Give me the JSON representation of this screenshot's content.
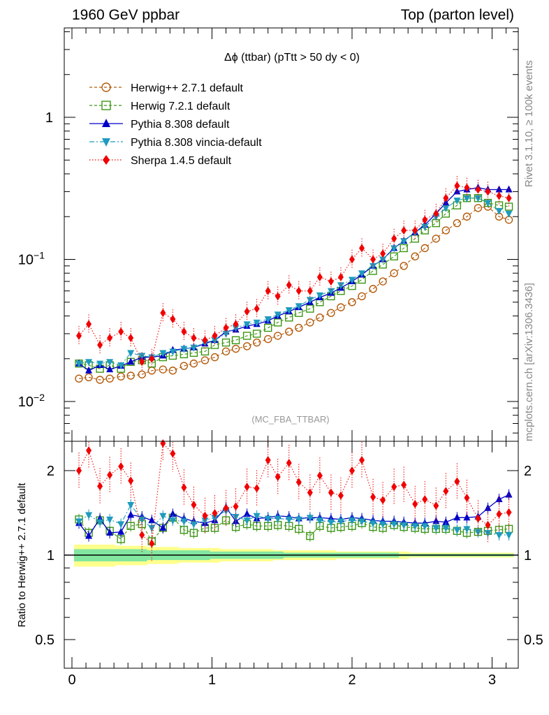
{
  "header": {
    "left": "1960 GeV ppbar",
    "right": "Top (parton level)"
  },
  "side": {
    "rivet": "Rivet 3.1.10, ≥ 100k events",
    "mcplots": "mcplots.cern.ch [arXiv:1306.3436]"
  },
  "plot_title": "Δϕ (ttbar) (pTtt > 50 dy < 0)",
  "analysis_label": "(MC_FBA_TTBAR)",
  "ratio_ylabel": "Ratio to Herwig++ 2.7.1 default",
  "colors": {
    "herwigpp": "#b45a0a",
    "herwig7": "#3c9614",
    "pythia": "#0000c8",
    "vincia": "#1e9bbe",
    "sherpa": "#f00000",
    "band_yellow": "#ffff8c",
    "band_green": "#82e6a0"
  },
  "chart_data": [
    {
      "type": "line",
      "title": "Δϕ (ttbar) (pTtt > 50 dy < 0)",
      "xlabel": "",
      "ylabel": "",
      "yscale": "log",
      "xlim": [
        -0.05,
        3.2
      ],
      "ylim": [
        0.0055,
        4.5
      ],
      "x_ticks": [
        "0",
        "1",
        "2",
        "3"
      ],
      "y_ticks": [
        "10^-2",
        "10^-1",
        "1"
      ],
      "legend_position": "top-left",
      "x": [
        0.05,
        0.12,
        0.2,
        0.27,
        0.35,
        0.42,
        0.5,
        0.57,
        0.65,
        0.72,
        0.8,
        0.87,
        0.95,
        1.02,
        1.1,
        1.17,
        1.25,
        1.32,
        1.4,
        1.47,
        1.55,
        1.62,
        1.7,
        1.77,
        1.85,
        1.92,
        2.0,
        2.07,
        2.15,
        2.22,
        2.3,
        2.37,
        2.45,
        2.52,
        2.6,
        2.67,
        2.75,
        2.82,
        2.9,
        2.97,
        3.05,
        3.12
      ],
      "series": [
        {
          "name": "Herwig++ 2.7.1 default",
          "color": "#b45a0a",
          "marker": "open-circle",
          "line": "dashed",
          "values": [
            0.0145,
            0.0148,
            0.0142,
            0.0145,
            0.015,
            0.0152,
            0.0155,
            0.0165,
            0.0168,
            0.0165,
            0.0178,
            0.0185,
            0.0195,
            0.0205,
            0.0225,
            0.0235,
            0.0245,
            0.026,
            0.0275,
            0.029,
            0.031,
            0.033,
            0.036,
            0.039,
            0.042,
            0.046,
            0.05,
            0.055,
            0.062,
            0.07,
            0.08,
            0.09,
            0.105,
            0.12,
            0.14,
            0.16,
            0.18,
            0.2,
            0.23,
            0.235,
            0.2,
            0.19
          ]
        },
        {
          "name": "Herwig 7.2.1 default",
          "color": "#3c9614",
          "marker": "open-square",
          "line": "dashed",
          "values": [
            0.0185,
            0.018,
            0.017,
            0.018,
            0.017,
            0.019,
            0.0195,
            0.0185,
            0.0205,
            0.021,
            0.0215,
            0.022,
            0.0225,
            0.025,
            0.026,
            0.027,
            0.029,
            0.03,
            0.033,
            0.036,
            0.039,
            0.042,
            0.045,
            0.05,
            0.055,
            0.06,
            0.065,
            0.072,
            0.083,
            0.092,
            0.105,
            0.12,
            0.14,
            0.16,
            0.18,
            0.21,
            0.24,
            0.27,
            0.27,
            0.25,
            0.24,
            0.235
          ]
        },
        {
          "name": "Pythia 8.308 default",
          "color": "#0000c8",
          "marker": "filled-triangle-up",
          "line": "solid",
          "values": [
            0.0185,
            0.0165,
            0.018,
            0.0168,
            0.0178,
            0.019,
            0.0205,
            0.0205,
            0.021,
            0.023,
            0.0235,
            0.024,
            0.0255,
            0.027,
            0.031,
            0.032,
            0.034,
            0.035,
            0.037,
            0.04,
            0.043,
            0.046,
            0.05,
            0.054,
            0.058,
            0.063,
            0.07,
            0.078,
            0.09,
            0.1,
            0.12,
            0.135,
            0.155,
            0.175,
            0.21,
            0.25,
            0.3,
            0.31,
            0.32,
            0.31,
            0.31,
            0.31
          ]
        },
        {
          "name": "Pythia 8.308 vincia-default",
          "color": "#1e9bbe",
          "marker": "filled-triangle-down",
          "line": "dashdot",
          "values": [
            0.0185,
            0.019,
            0.0185,
            0.019,
            0.018,
            0.022,
            0.021,
            0.0205,
            0.022,
            0.0225,
            0.0235,
            0.024,
            0.026,
            0.027,
            0.03,
            0.033,
            0.035,
            0.036,
            0.038,
            0.041,
            0.044,
            0.047,
            0.052,
            0.056,
            0.06,
            0.066,
            0.072,
            0.08,
            0.09,
            0.1,
            0.12,
            0.135,
            0.155,
            0.17,
            0.2,
            0.23,
            0.26,
            0.27,
            0.27,
            0.25,
            0.22,
            0.21
          ]
        },
        {
          "name": "Sherpa 1.4.5 default",
          "color": "#f00000",
          "marker": "filled-diamond",
          "line": "dotted",
          "values": [
            0.029,
            0.035,
            0.025,
            0.028,
            0.031,
            0.028,
            0.019,
            0.02,
            0.042,
            0.038,
            0.031,
            0.028,
            0.027,
            0.029,
            0.033,
            0.035,
            0.043,
            0.045,
            0.06,
            0.055,
            0.066,
            0.06,
            0.06,
            0.075,
            0.07,
            0.075,
            0.1,
            0.12,
            0.1,
            0.11,
            0.14,
            0.16,
            0.16,
            0.19,
            0.21,
            0.27,
            0.33,
            0.32,
            0.31,
            0.3,
            0.28,
            0.27
          ]
        }
      ]
    },
    {
      "type": "line",
      "title": "",
      "xlabel": "",
      "ylabel": "Ratio to Herwig++ 2.7.1 default",
      "yscale": "log",
      "xlim": [
        -0.05,
        3.2
      ],
      "ylim": [
        0.41,
        2.5
      ],
      "x_ticks": [
        "0",
        "1",
        "2",
        "3"
      ],
      "y_ticks": [
        "0.5",
        "1",
        "2"
      ],
      "band": {
        "yellow_half_width": [
          0.09,
          0.09,
          0.09,
          0.09,
          0.08,
          0.08,
          0.08,
          0.07,
          0.07,
          0.07,
          0.06,
          0.06,
          0.06,
          0.06,
          0.05,
          0.05,
          0.05,
          0.05,
          0.05,
          0.04,
          0.04,
          0.04,
          0.04,
          0.04,
          0.04,
          0.03,
          0.03,
          0.03,
          0.03,
          0.03,
          0.03,
          0.03,
          0.02,
          0.02,
          0.02,
          0.02,
          0.02,
          0.02,
          0.02,
          0.02,
          0.02,
          0.02
        ],
        "green_half_width": [
          0.05,
          0.05,
          0.05,
          0.05,
          0.05,
          0.05,
          0.05,
          0.04,
          0.04,
          0.04,
          0.04,
          0.04,
          0.04,
          0.03,
          0.03,
          0.03,
          0.03,
          0.03,
          0.03,
          0.03,
          0.02,
          0.02,
          0.02,
          0.02,
          0.02,
          0.02,
          0.02,
          0.02,
          0.02,
          0.02,
          0.02,
          0.01,
          0.01,
          0.01,
          0.01,
          0.01,
          0.01,
          0.01,
          0.01,
          0.01,
          0.01,
          0.01
        ]
      },
      "x": [
        0.05,
        0.12,
        0.2,
        0.27,
        0.35,
        0.42,
        0.5,
        0.57,
        0.65,
        0.72,
        0.8,
        0.87,
        0.95,
        1.02,
        1.1,
        1.17,
        1.25,
        1.32,
        1.4,
        1.47,
        1.55,
        1.62,
        1.7,
        1.77,
        1.85,
        1.92,
        2.0,
        2.07,
        2.15,
        2.22,
        2.3,
        2.37,
        2.45,
        2.52,
        2.6,
        2.67,
        2.75,
        2.82,
        2.9,
        2.97,
        3.05,
        3.12
      ],
      "series": [
        {
          "name": "Herwig 7.2.1 default",
          "color": "#3c9614",
          "marker": "open-square",
          "values": [
            1.34,
            1.2,
            1.33,
            1.22,
            1.14,
            1.27,
            1.29,
            1.12,
            1.25,
            1.36,
            1.23,
            1.2,
            1.25,
            1.25,
            1.33,
            1.26,
            1.29,
            1.27,
            1.27,
            1.28,
            1.27,
            1.24,
            1.17,
            1.27,
            1.25,
            1.26,
            1.27,
            1.3,
            1.26,
            1.25,
            1.28,
            1.26,
            1.25,
            1.24,
            1.24,
            1.24,
            1.22,
            1.2,
            1.21,
            1.22,
            1.23,
            1.24
          ]
        },
        {
          "name": "Pythia 8.308 default",
          "color": "#0000c8",
          "marker": "filled-triangle-up",
          "values": [
            1.3,
            1.17,
            1.35,
            1.2,
            1.21,
            1.39,
            1.37,
            1.33,
            1.25,
            1.4,
            1.35,
            1.32,
            1.3,
            1.33,
            1.48,
            1.32,
            1.4,
            1.35,
            1.36,
            1.38,
            1.37,
            1.35,
            1.36,
            1.36,
            1.35,
            1.34,
            1.36,
            1.35,
            1.33,
            1.32,
            1.32,
            1.31,
            1.3,
            1.3,
            1.32,
            1.31,
            1.36,
            1.36,
            1.37,
            1.47,
            1.58,
            1.64
          ]
        },
        {
          "name": "Pythia 8.308 vincia-default",
          "color": "#1e9bbe",
          "marker": "filled-triangle-down",
          "values": [
            1.32,
            1.39,
            1.31,
            1.34,
            1.29,
            1.51,
            1.34,
            1.25,
            1.38,
            1.33,
            1.32,
            1.29,
            1.33,
            1.36,
            1.44,
            1.37,
            1.33,
            1.38,
            1.35,
            1.35,
            1.34,
            1.34,
            1.36,
            1.33,
            1.31,
            1.32,
            1.33,
            1.32,
            1.3,
            1.29,
            1.29,
            1.28,
            1.27,
            1.27,
            1.25,
            1.25,
            1.23,
            1.24,
            1.21,
            1.2,
            1.18,
            1.18
          ]
        },
        {
          "name": "Sherpa 1.4.5 default",
          "color": "#f00000",
          "marker": "filled-diamond",
          "values": [
            2.0,
            2.36,
            1.76,
            1.93,
            2.07,
            1.84,
            1.18,
            1.1,
            2.5,
            2.3,
            1.74,
            1.51,
            1.38,
            1.41,
            1.47,
            1.49,
            1.75,
            1.73,
            2.18,
            1.9,
            2.13,
            1.82,
            1.67,
            1.92,
            1.67,
            1.63,
            2.0,
            2.18,
            1.61,
            1.57,
            1.75,
            1.78,
            1.52,
            1.58,
            1.5,
            1.69,
            1.83,
            1.6,
            1.35,
            1.28,
            1.4,
            1.42
          ]
        }
      ]
    }
  ]
}
